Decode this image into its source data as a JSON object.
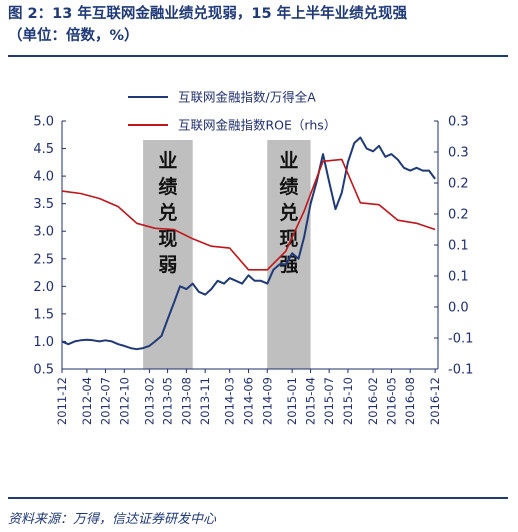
{
  "header": {
    "title": "图 2：13 年互联网金融业绩兑现弱，15 年上半年业绩兑现强",
    "subtitle": "（单位：倍数，%）"
  },
  "footer": {
    "source": "资料来源：万得，信达证券研发中心"
  },
  "colors": {
    "index_line": "#1f3a77",
    "roe_line": "#c0161b",
    "shade": "#bfbfbf",
    "text": "#1f2f6f"
  },
  "chart_data": {
    "type": "line",
    "title": "",
    "xlabel": "",
    "ylabel": "",
    "x_ticks": [
      "2011-12",
      "2012-04",
      "2012-07",
      "2012-10",
      "2013-02",
      "2013-05",
      "2013-08",
      "2013-11",
      "2014-03",
      "2014-06",
      "2014-09",
      "2015-01",
      "2015-04",
      "2015-07",
      "2015-10",
      "2016-02",
      "2016-05",
      "2016-08",
      "2016-12"
    ],
    "ylim": [
      0.5,
      5.0
    ],
    "y_ticks": [
      "0.5",
      "1.0",
      "1.5",
      "2.0",
      "2.5",
      "3.0",
      "3.5",
      "4.0",
      "4.5",
      "5.0"
    ],
    "y2lim": [
      -0.1,
      0.3
    ],
    "y2_ticks": [
      "-0.1",
      "-0.1",
      "0.0",
      "0.1",
      "0.1",
      "0.2",
      "0.2",
      "0.3",
      "0.3"
    ],
    "legend_position": "top-center",
    "series": [
      {
        "name": "互联网金融指数/万得全A",
        "axis": "left",
        "x": [
          "2011-12-01",
          "2012-01-01",
          "2012-02-01",
          "2012-03-01",
          "2012-04-01",
          "2012-05-01",
          "2012-06-01",
          "2012-07-01",
          "2012-08-01",
          "2012-09-01",
          "2012-10-01",
          "2012-11-01",
          "2012-12-01",
          "2013-01-01",
          "2013-02-01",
          "2013-03-01",
          "2013-04-01",
          "2013-05-01",
          "2013-06-01",
          "2013-07-01",
          "2013-08-01",
          "2013-09-01",
          "2013-10-01",
          "2013-11-01",
          "2013-12-01",
          "2014-01-01",
          "2014-02-01",
          "2014-03-01",
          "2014-04-01",
          "2014-05-01",
          "2014-06-01",
          "2014-07-01",
          "2014-08-01",
          "2014-09-01",
          "2014-10-01",
          "2014-11-01",
          "2014-12-01",
          "2015-01-01",
          "2015-02-01",
          "2015-03-01",
          "2015-04-01",
          "2015-05-01",
          "2015-06-01",
          "2015-07-01",
          "2015-08-01",
          "2015-09-01",
          "2015-10-01",
          "2015-11-01",
          "2015-12-01",
          "2016-01-01",
          "2016-02-01",
          "2016-03-01",
          "2016-04-01",
          "2016-05-01",
          "2016-06-01",
          "2016-07-01",
          "2016-08-01",
          "2016-09-01",
          "2016-10-01",
          "2016-11-01",
          "2016-12-01"
        ],
        "values": [
          1.0,
          0.95,
          1.0,
          1.02,
          1.03,
          1.02,
          1.0,
          1.02,
          1.0,
          0.95,
          0.92,
          0.88,
          0.86,
          0.88,
          0.92,
          1.0,
          1.1,
          1.4,
          1.7,
          2.0,
          1.95,
          2.05,
          1.9,
          1.85,
          1.95,
          2.1,
          2.05,
          2.15,
          2.1,
          2.05,
          2.2,
          2.1,
          2.1,
          2.05,
          2.3,
          2.4,
          2.4,
          2.6,
          2.5,
          2.9,
          3.5,
          3.9,
          4.4,
          3.9,
          3.4,
          3.7,
          4.25,
          4.6,
          4.7,
          4.5,
          4.45,
          4.55,
          4.35,
          4.4,
          4.3,
          4.15,
          4.1,
          4.15,
          4.1,
          4.1,
          3.95
        ]
      },
      {
        "name": "互联网金融指数ROE（rhs）",
        "axis": "right",
        "x": [
          "2011-12-01",
          "2012-03-01",
          "2012-06-01",
          "2012-09-01",
          "2012-12-01",
          "2013-03-01",
          "2013-06-01",
          "2013-09-01",
          "2013-12-01",
          "2014-03-01",
          "2014-06-01",
          "2014-09-01",
          "2014-12-01",
          "2015-03-01",
          "2015-06-01",
          "2015-09-01",
          "2015-12-01",
          "2016-03-01",
          "2016-06-01",
          "2016-09-01",
          "2016-12-01"
        ],
        "values": [
          0.187,
          0.183,
          0.175,
          0.162,
          0.135,
          0.127,
          0.125,
          0.11,
          0.098,
          0.095,
          0.06,
          0.06,
          0.09,
          0.155,
          0.235,
          0.238,
          0.168,
          0.165,
          0.14,
          0.135,
          0.125
        ]
      }
    ],
    "annotations": [
      {
        "label": "业绩兑现弱",
        "x_start": "2013-01",
        "x_end": "2013-09"
      },
      {
        "label": "业绩兑现强",
        "x_start": "2014-09",
        "x_end": "2015-04"
      }
    ]
  }
}
